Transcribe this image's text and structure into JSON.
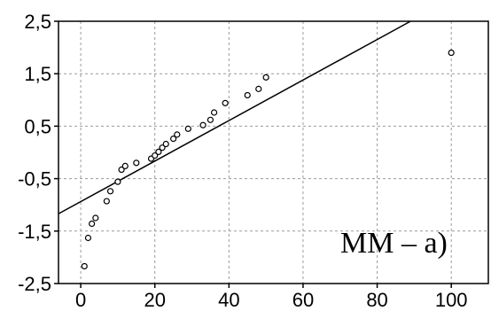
{
  "chart_data": {
    "type": "scatter",
    "title": "",
    "xlabel": "",
    "ylabel": "",
    "annotation": "MM – a)",
    "xlim": [
      -6,
      110
    ],
    "ylim": [
      -2.5,
      2.5
    ],
    "x_ticks": [
      0,
      20,
      40,
      60,
      80,
      100
    ],
    "x_tick_labels": [
      "0",
      "20",
      "40",
      "60",
      "80",
      "100"
    ],
    "y_ticks": [
      -2.5,
      -1.5,
      -0.5,
      0.5,
      1.5,
      2.5
    ],
    "y_tick_labels": [
      "-2,5",
      "-1,5",
      "-0,5",
      "0,5",
      "1,5",
      "2,5"
    ],
    "grid": true,
    "points": [
      {
        "x": 1,
        "y": -2.17
      },
      {
        "x": 2,
        "y": -1.63
      },
      {
        "x": 3,
        "y": -1.36
      },
      {
        "x": 4,
        "y": -1.25
      },
      {
        "x": 7,
        "y": -0.93
      },
      {
        "x": 8,
        "y": -0.74
      },
      {
        "x": 10,
        "y": -0.56
      },
      {
        "x": 11,
        "y": -0.33
      },
      {
        "x": 12,
        "y": -0.26
      },
      {
        "x": 15,
        "y": -0.2
      },
      {
        "x": 19,
        "y": -0.12
      },
      {
        "x": 20,
        "y": -0.06
      },
      {
        "x": 21,
        "y": 0.01
      },
      {
        "x": 22,
        "y": 0.09
      },
      {
        "x": 23,
        "y": 0.16
      },
      {
        "x": 25,
        "y": 0.26
      },
      {
        "x": 26,
        "y": 0.34
      },
      {
        "x": 29,
        "y": 0.45
      },
      {
        "x": 33,
        "y": 0.52
      },
      {
        "x": 35,
        "y": 0.62
      },
      {
        "x": 36,
        "y": 0.76
      },
      {
        "x": 39,
        "y": 0.94
      },
      {
        "x": 45,
        "y": 1.09
      },
      {
        "x": 48,
        "y": 1.21
      },
      {
        "x": 50,
        "y": 1.43
      },
      {
        "x": 100,
        "y": 1.9
      }
    ],
    "fit_line": {
      "x": [
        -6,
        89
      ],
      "y": [
        -1.17,
        2.5
      ]
    }
  }
}
